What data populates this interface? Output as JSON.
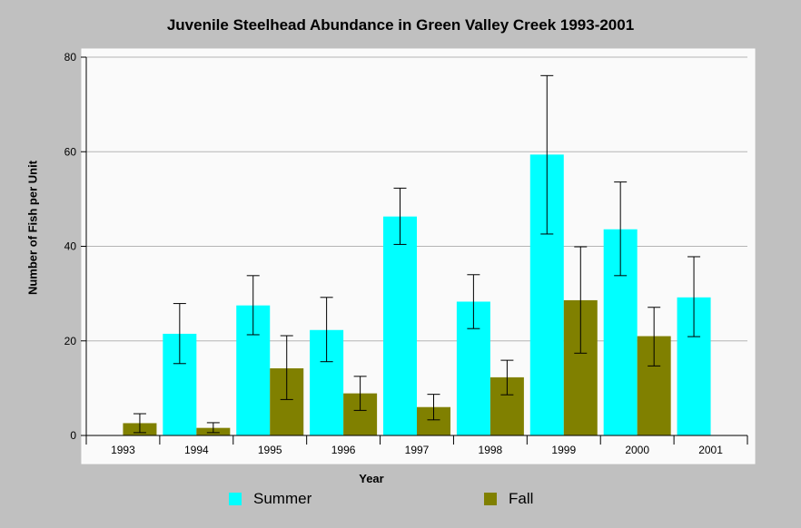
{
  "chart_data": {
    "type": "bar",
    "title": "Juvenile Steelhead Abundance in Green Valley Creek 1993-2001",
    "xlabel": "Year",
    "ylabel": "Number of Fish per Unit",
    "ylim": [
      0,
      80
    ],
    "yticks": [
      "0",
      "20",
      "40",
      "60",
      "80"
    ],
    "grid": true,
    "legend_position": "bottom",
    "categories": [
      "1993",
      "1994",
      "1995",
      "1996",
      "1997",
      "1998",
      "1999",
      "2000",
      "2001"
    ],
    "series": [
      {
        "name": "Summer",
        "color": "#00ffff",
        "values": [
          null,
          21.5,
          27.5,
          22.3,
          46.3,
          28.3,
          59.4,
          43.6,
          29.2
        ],
        "error_low": [
          null,
          15.2,
          21.3,
          15.6,
          40.4,
          22.6,
          42.6,
          33.8,
          20.9
        ],
        "error_high": [
          null,
          27.9,
          33.8,
          29.2,
          52.3,
          34.0,
          76.1,
          53.6,
          37.8
        ]
      },
      {
        "name": "Fall",
        "color": "#808000",
        "values": [
          2.6,
          1.6,
          14.2,
          8.9,
          6.0,
          12.3,
          28.6,
          21.0,
          null
        ],
        "error_low": [
          0.6,
          0.6,
          7.6,
          5.3,
          3.3,
          8.6,
          17.4,
          14.7,
          null
        ],
        "error_high": [
          4.6,
          2.7,
          21.1,
          12.5,
          8.7,
          15.9,
          39.9,
          27.1,
          null
        ]
      }
    ]
  }
}
